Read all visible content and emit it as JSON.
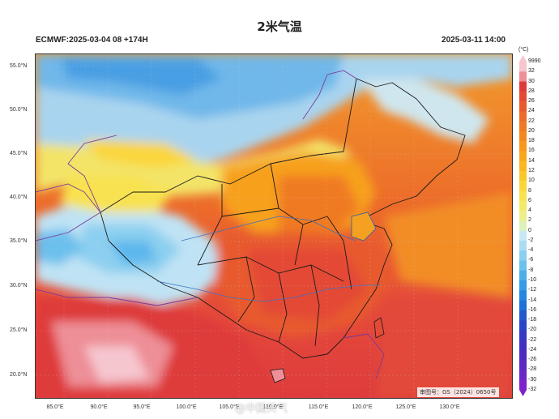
{
  "header": {
    "title": "2米气温",
    "model_run": "ECMWF:2025-03-04 08 +174H",
    "valid_time": "2025-03-11 14:00"
  },
  "map": {
    "lat_labels": [
      "55.0°N",
      "50.0°N",
      "45.0°N",
      "40.0°N",
      "35.0°N",
      "30.0°N",
      "25.0°N",
      "20.0°N"
    ],
    "lon_labels": [
      "85.0°E",
      "90.0°E",
      "95.0°E",
      "100.0°E",
      "105.0°E",
      "110.0°E",
      "115.0°E",
      "120.0°E",
      "125.0°E",
      "130.0°E"
    ],
    "approval_stamp": "审图号：GS（2024）0650号",
    "watermark": "@中国天气"
  },
  "legend": {
    "unit": "(°C)",
    "labels": [
      "9990",
      "32",
      "30",
      "28",
      "26",
      "24",
      "22",
      "20",
      "18",
      "16",
      "14",
      "12",
      "10",
      "8",
      "6",
      "4",
      "2",
      "0",
      "-2",
      "-4",
      "-6",
      "-8",
      "-10",
      "-12",
      "-14",
      "-16",
      "-18",
      "-20",
      "-22",
      "-24",
      "-26",
      "-28",
      "-30",
      "-32"
    ],
    "colors": [
      "#f6c6cf",
      "#ee8e96",
      "#de3a3a",
      "#e34a34",
      "#e85a2e",
      "#ed6a29",
      "#f07a24",
      "#f4881f",
      "#f7981d",
      "#f9a81d",
      "#fab820",
      "#fbc82a",
      "#fbd63a",
      "#f8e250",
      "#f3ea6a",
      "#ecef8a",
      "#ddf2b8",
      "#c9e8f5",
      "#acdcf2",
      "#8ccff0",
      "#6cc0ed",
      "#4daeea",
      "#349be6",
      "#2486e0",
      "#1f70d8",
      "#2358cf",
      "#2a46c8",
      "#343ac2",
      "#3f31c0",
      "#4c2bc0",
      "#5a28c2",
      "#6a26c6",
      "#7e22cc"
    ]
  }
}
